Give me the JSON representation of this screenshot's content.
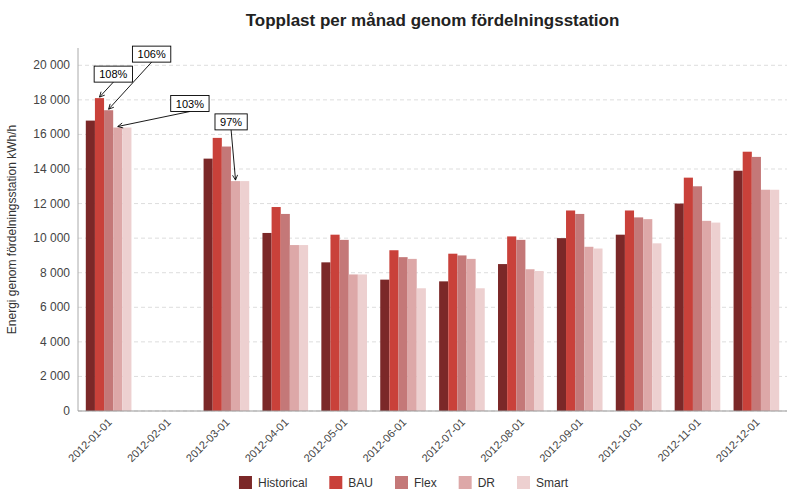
{
  "chart_data": {
    "type": "bar",
    "title": "Topplast per månad genom fördelningsstation",
    "ylabel": "Energi genom fördelningsstation kWh/h",
    "categories": [
      "2012-01-01",
      "2012-02-01",
      "2012-03-01",
      "2012-04-01",
      "2012-05-01",
      "2012-06-01",
      "2012-07-01",
      "2012-08-01",
      "2012-09-01",
      "2012-10-01",
      "2012-11-01",
      "2012-12-01"
    ],
    "series": [
      {
        "name": "Historical",
        "color": "#7B2828",
        "values": [
          16800,
          0,
          14600,
          10300,
          8600,
          7600,
          7500,
          8500,
          10000,
          10200,
          12000,
          13900
        ]
      },
      {
        "name": "BAU",
        "color": "#C9413A",
        "values": [
          18100,
          0,
          15800,
          11800,
          10200,
          9300,
          9100,
          10100,
          11600,
          11600,
          13500,
          15000
        ]
      },
      {
        "name": "Flex",
        "color": "#C47878",
        "values": [
          17400,
          0,
          15300,
          11400,
          9900,
          8900,
          9000,
          9900,
          11400,
          11200,
          13000,
          14700
        ]
      },
      {
        "name": "DR",
        "color": "#DDA8A8",
        "values": [
          16400,
          0,
          13300,
          9600,
          7900,
          8800,
          8800,
          8200,
          9500,
          11100,
          11000,
          12800
        ]
      },
      {
        "name": "Smart",
        "color": "#EDD0D0",
        "values": [
          16400,
          0,
          13300,
          9600,
          7900,
          7100,
          7100,
          8100,
          9400,
          9700,
          10900,
          12800
        ]
      }
    ],
    "ylim": [
      0,
      21000
    ],
    "yticks": [
      0,
      {
        "value": 2000,
        "label": "2 000"
      },
      {
        "value": 4000,
        "label": "4 000"
      },
      {
        "value": 6000,
        "label": "6 000"
      },
      {
        "value": 8000,
        "label": "8 000"
      },
      {
        "value": 10000,
        "label": "10 000"
      },
      {
        "value": 12000,
        "label": "12 000"
      },
      {
        "value": 14000,
        "label": "14 000"
      },
      {
        "value": 16000,
        "label": "16 000"
      },
      {
        "value": 18000,
        "label": "18 000"
      },
      {
        "value": 20000,
        "label": "20 000"
      }
    ],
    "grid": true,
    "legend": "bottom",
    "annotations": [
      {
        "text": "108%",
        "series": "BAU",
        "category": "2012-01-01"
      },
      {
        "text": "106%",
        "series": "Flex",
        "category": "2012-01-01"
      },
      {
        "text": "103%",
        "series": "DR",
        "category": "2012-01-01"
      },
      {
        "text": "97%",
        "series": "DR",
        "category": "2012-03-01"
      }
    ]
  }
}
